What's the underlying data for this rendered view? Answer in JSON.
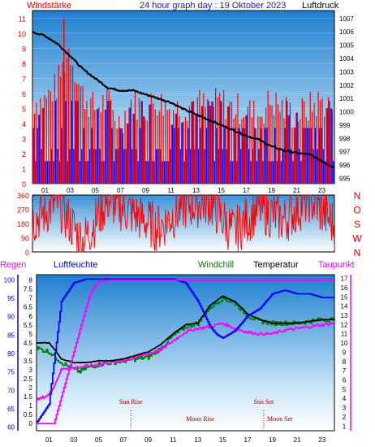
{
  "header": {
    "title": "24 hour graph day : 19 Oktober 2023",
    "left_label": "Windstärke",
    "right_label": "Luftdruck"
  },
  "hours": [
    "01",
    "03",
    "05",
    "07",
    "09",
    "11",
    "13",
    "15",
    "17",
    "19",
    "21",
    "23"
  ],
  "colors": {
    "wind_red": "#ff0000",
    "wind_blue": "#0000ff",
    "pressure": "#000000",
    "humidity": "#0000ff",
    "windchill": "#008000",
    "temperature": "#000000",
    "dewpoint": "#ff00ff",
    "regen": "#ff00ff"
  },
  "chart_data": [
    {
      "type": "line",
      "title": "24 hour graph day : 19 Oktober 2023",
      "y_left_label": "Windstärke",
      "y_right_label": "Luftdruck",
      "x_range": [
        0,
        24
      ],
      "y_left_ticks": [
        0,
        1,
        2,
        3,
        4,
        5,
        6,
        7,
        8,
        9,
        10,
        11
      ],
      "y_right_ticks": [
        995,
        996,
        997,
        998,
        999,
        1000,
        1001,
        1002,
        1003,
        1004,
        1005,
        1006,
        1007
      ],
      "series": [
        {
          "name": "Windstärke",
          "color": "#ff0000",
          "x": [
            0,
            1,
            2,
            3,
            4,
            5,
            6,
            7,
            8,
            9,
            10,
            11,
            12,
            13,
            14,
            15,
            16,
            17,
            18,
            19,
            20,
            21,
            22,
            23,
            24
          ],
          "values": [
            5.5,
            5.5,
            6.5,
            9,
            6,
            5,
            5.5,
            4,
            5.5,
            5,
            5.5,
            5,
            5,
            5.5,
            5,
            5.5,
            5,
            5,
            4.5,
            5.5,
            5,
            4.5,
            5,
            5.5,
            5
          ]
        },
        {
          "name": "Luftdruck",
          "color": "#000000",
          "x": [
            0,
            1,
            2,
            3,
            4,
            5,
            6,
            7,
            8,
            9,
            10,
            11,
            12,
            13,
            14,
            15,
            16,
            17,
            18,
            19,
            20,
            21,
            22,
            23,
            24
          ],
          "values": [
            1006,
            1005.7,
            1005.1,
            1004.2,
            1003.2,
            1002.5,
            1001.8,
            1001.6,
            1001.6,
            1001.3,
            1001,
            1000.7,
            1000.2,
            999.8,
            999.4,
            999,
            998.6,
            998.2,
            997.9,
            997.4,
            997.1,
            996.9,
            996.8,
            996.3,
            995.8
          ]
        }
      ]
    },
    {
      "type": "line",
      "title": "",
      "y_left_ticks": [
        0,
        90,
        180,
        270,
        360
      ],
      "y_right_ticks": [
        "N",
        "W",
        "S",
        "O",
        "N"
      ],
      "series": [
        {
          "name": "Windrichtung",
          "color": "#ff0000",
          "x": [
            0,
            2,
            4,
            6,
            8,
            10,
            12,
            14,
            16,
            18,
            20,
            22,
            24
          ],
          "values": [
            200,
            310,
            60,
            330,
            240,
            150,
            290,
            320,
            120,
            280,
            200,
            340,
            170
          ]
        }
      ]
    },
    {
      "type": "line",
      "title": "",
      "legend": [
        "Regen",
        "Luftfeuchte",
        "Windchill",
        "Temperatur",
        "Taupunkt"
      ],
      "y_left_ticks": [
        60,
        65,
        70,
        75,
        80,
        85,
        90,
        95,
        100
      ],
      "y_mid_ticks": [
        0,
        0.5,
        1,
        1.5,
        2,
        2.5,
        3,
        3.5,
        4,
        4.5,
        5,
        5.5,
        6,
        6.5,
        7,
        7.5,
        8
      ],
      "y_right_ticks": [
        1,
        2,
        3,
        4,
        5,
        6,
        7,
        8,
        9,
        10,
        11,
        12,
        13,
        14,
        15,
        16,
        17
      ],
      "annotations": [
        {
          "text": "Sun Rise",
          "x": 7.6
        },
        {
          "text": "Sun Set",
          "x": 18.3
        },
        {
          "text": "Moon Rise",
          "x": 13.2
        },
        {
          "text": "Moon Set",
          "x": 19.6
        }
      ],
      "series": [
        {
          "name": "Luftfeuchte",
          "color": "#0000ff",
          "x": [
            0,
            1,
            1.5,
            2,
            3,
            4,
            5,
            6,
            7,
            8,
            9,
            10,
            11,
            12,
            13,
            14,
            14.5,
            15,
            16,
            17,
            18,
            19,
            20,
            21,
            22,
            23,
            24
          ],
          "values": [
            61,
            66,
            80,
            94,
            99,
            100,
            100,
            100,
            100,
            100,
            100,
            100,
            100,
            99,
            94,
            87,
            85,
            84,
            86,
            90,
            92,
            96,
            97,
            96,
            96,
            95,
            95
          ]
        },
        {
          "name": "Temperatur",
          "color": "#000000",
          "x": [
            0,
            1,
            1.5,
            2,
            3,
            4,
            5,
            6,
            7,
            8,
            9,
            10,
            11,
            12,
            13,
            14,
            15,
            16,
            17,
            18,
            19,
            20,
            21,
            22,
            23,
            24
          ],
          "values": [
            4.5,
            4.5,
            4.1,
            3.6,
            3.4,
            3.4,
            3.5,
            3.5,
            3.6,
            3.8,
            4.0,
            4.4,
            5.0,
            5.5,
            5.6,
            6.6,
            7.1,
            6.8,
            6.1,
            5.8,
            5.6,
            5.6,
            5.6,
            5.7,
            5.8,
            5.8
          ]
        },
        {
          "name": "Windchill",
          "color": "#008000",
          "x": [
            0,
            1,
            2,
            2.5,
            3,
            3.5,
            4,
            5,
            6,
            7,
            8,
            9,
            10,
            11,
            12,
            13,
            14,
            15,
            16,
            17,
            18,
            19,
            20,
            21,
            22,
            23,
            24
          ],
          "values": [
            4.2,
            4.0,
            3.4,
            3.2,
            3.0,
            2.9,
            3.1,
            3.3,
            3.4,
            3.5,
            3.6,
            3.7,
            4.2,
            4.9,
            5.4,
            5.6,
            6.5,
            7.0,
            6.7,
            6.0,
            5.7,
            5.6,
            5.6,
            5.6,
            5.7,
            5.8,
            5.8
          ]
        },
        {
          "name": "Taupunkt",
          "color": "#ff00ff",
          "x": [
            0,
            1,
            1.5,
            2,
            2.5,
            3,
            4,
            5,
            6,
            7,
            8,
            9,
            10,
            11,
            12,
            13,
            14,
            15,
            16,
            17,
            18,
            19,
            20,
            21,
            22,
            23,
            24
          ],
          "values": [
            1.3,
            1.6,
            2.2,
            3.0,
            3.1,
            3.1,
            3.2,
            3.3,
            3.4,
            3.5,
            3.7,
            3.9,
            4.1,
            4.6,
            5.1,
            5.3,
            5.4,
            5.6,
            5.3,
            5.1,
            5.0,
            5.0,
            5.2,
            5.3,
            5.4,
            5.5,
            5.6
          ]
        },
        {
          "name": "Regen",
          "color": "#ff00ff",
          "x": [
            0,
            1.4,
            2,
            3,
            4,
            4.4,
            5,
            6,
            7,
            8,
            9,
            10,
            11,
            12,
            13,
            14,
            15,
            16,
            17,
            18,
            19,
            20,
            21,
            22,
            23,
            24
          ],
          "values": [
            0,
            0,
            1.5,
            4,
            6.5,
            7.4,
            7.9,
            8,
            8,
            8,
            8,
            8,
            8,
            8,
            8,
            8,
            8,
            8,
            8,
            8,
            8,
            8,
            8,
            8,
            8,
            8
          ]
        }
      ]
    }
  ]
}
